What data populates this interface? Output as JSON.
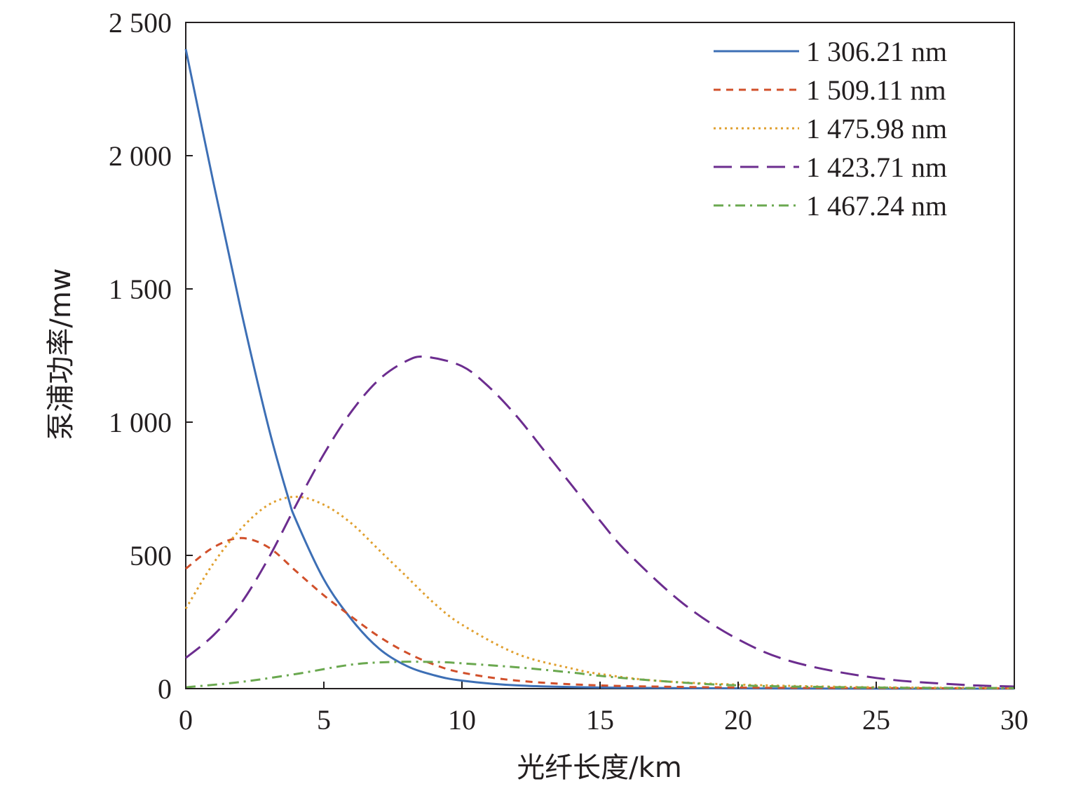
{
  "chart_data": {
    "type": "line",
    "title": "",
    "xlabel": "光纤长度/km",
    "ylabel": "泵浦功率/mw",
    "xlim": [
      0,
      30
    ],
    "ylim": [
      0,
      2500
    ],
    "x_ticks": [
      0,
      5,
      10,
      15,
      20,
      25,
      30
    ],
    "x_tick_labels": [
      "0",
      "5",
      "10",
      "15",
      "20",
      "25",
      "30"
    ],
    "y_ticks": [
      0,
      500,
      1000,
      1500,
      2000,
      2500
    ],
    "y_tick_labels": [
      "0",
      "500",
      "1 000",
      "1 500",
      "2 000",
      "2 500"
    ],
    "grid": false,
    "legend_position": "top-right",
    "series": [
      {
        "name": "1 306.21 nm",
        "color": "#3d6fb5",
        "dash": "solid",
        "x": [
          0,
          1,
          2,
          3,
          3.7,
          4,
          5,
          6,
          7,
          8,
          9,
          10,
          12,
          15,
          20,
          25,
          30
        ],
        "y": [
          2400,
          1900,
          1420,
          980,
          720,
          630,
          410,
          260,
          150,
          85,
          50,
          30,
          12,
          4,
          1,
          0,
          0
        ]
      },
      {
        "name": "1 509.11 nm",
        "color": "#d1502b",
        "dash": "short-dash",
        "x": [
          0,
          1,
          2,
          3,
          4,
          5,
          6,
          7,
          8,
          9,
          10,
          12,
          15,
          20,
          25,
          30
        ],
        "y": [
          450,
          530,
          565,
          530,
          440,
          350,
          270,
          195,
          135,
          90,
          60,
          30,
          12,
          4,
          2,
          1
        ]
      },
      {
        "name": "1 475.98 nm",
        "color": "#e0a030",
        "dash": "dotted",
        "x": [
          0,
          1,
          2,
          3,
          4,
          5,
          6,
          7,
          8,
          9,
          10,
          12,
          14,
          15,
          17,
          20,
          25,
          30
        ],
        "y": [
          300,
          470,
          600,
          690,
          720,
          690,
          620,
          520,
          420,
          320,
          240,
          130,
          75,
          55,
          30,
          15,
          5,
          2
        ]
      },
      {
        "name": "1 423.71 nm",
        "color": "#6c2d8f",
        "dash": "long-dash",
        "x": [
          0,
          1,
          2,
          3,
          4,
          5,
          6,
          7,
          8,
          8.7,
          10,
          11,
          12,
          13,
          14,
          15,
          16,
          18,
          20,
          22,
          25,
          28,
          30
        ],
        "y": [
          115,
          200,
          320,
          490,
          690,
          880,
          1040,
          1160,
          1230,
          1245,
          1210,
          1130,
          1020,
          890,
          760,
          630,
          510,
          320,
          185,
          100,
          40,
          15,
          8
        ]
      },
      {
        "name": "1 467.24 nm",
        "color": "#6aa84f",
        "dash": "dash-dot",
        "x": [
          0,
          2,
          4,
          6,
          7.5,
          9,
          10,
          12,
          14,
          15,
          17,
          20,
          25,
          30
        ],
        "y": [
          5,
          25,
          55,
          90,
          100,
          100,
          95,
          80,
          60,
          48,
          30,
          12,
          4,
          2
        ]
      }
    ]
  }
}
